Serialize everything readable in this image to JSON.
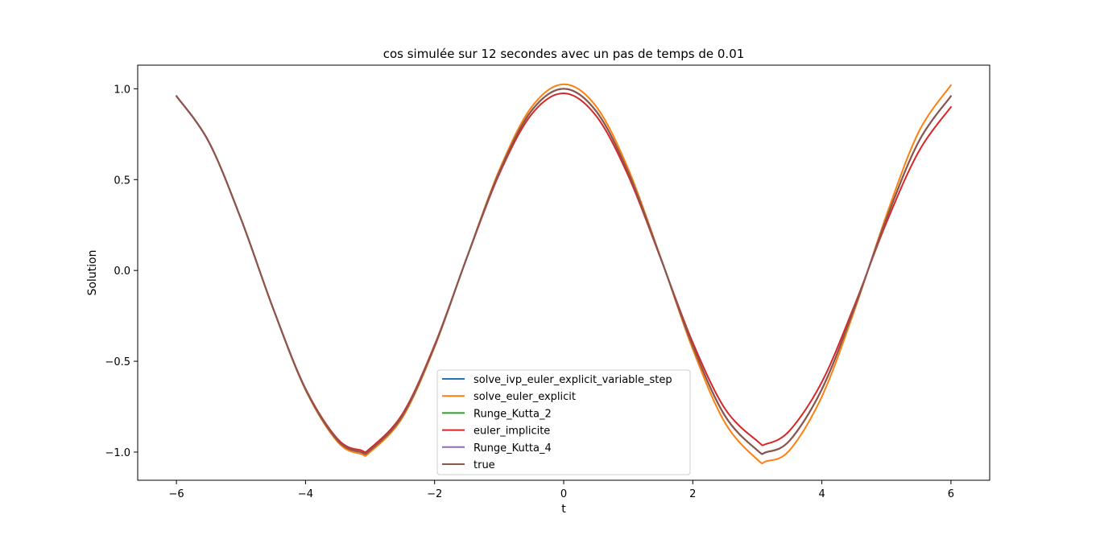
{
  "chart_data": {
    "type": "line",
    "title": "cos simulée sur 12 secondes avec un pas de temps de 0.01",
    "xlabel": "t",
    "ylabel": "Solution",
    "xlim": [
      -6.6,
      6.6
    ],
    "ylim": [
      -1.155,
      1.13
    ],
    "grid": false,
    "legend_position": "lower center",
    "x_ticks": [
      -6,
      -4,
      -2,
      0,
      2,
      4,
      6
    ],
    "x_tick_labels": [
      "−6",
      "−4",
      "−2",
      "0",
      "2",
      "4",
      "6"
    ],
    "y_ticks": [
      -1.0,
      -0.5,
      0.0,
      0.5,
      1.0
    ],
    "y_tick_labels": [
      "−1.0",
      "−0.5",
      "0.0",
      "0.5",
      "1.0"
    ],
    "x": [
      -6.0,
      -5.5,
      -5.0,
      -4.5,
      -4.0,
      -3.5,
      -3.14,
      -3.0,
      -2.5,
      -2.0,
      -1.5,
      -1.0,
      -0.5,
      0.0,
      0.5,
      1.0,
      1.5,
      2.0,
      2.5,
      3.0,
      3.14,
      3.5,
      4.0,
      4.5,
      5.0,
      5.5,
      6.0
    ],
    "series": [
      {
        "name": "solve_ivp_euler_explicit_variable_step",
        "color": "#1f77b4",
        "values": [
          0.96,
          0.709,
          0.284,
          -0.211,
          -0.654,
          -0.937,
          -1.0,
          -0.99,
          -0.801,
          -0.416,
          0.071,
          0.54,
          0.878,
          1.0,
          0.878,
          0.54,
          0.071,
          -0.416,
          -0.801,
          -0.99,
          -1.0,
          -0.937,
          -0.654,
          -0.211,
          0.284,
          0.709,
          0.96
        ]
      },
      {
        "name": "solve_euler_explicit",
        "color": "#ff7f0e",
        "values": [
          0.96,
          0.71,
          0.285,
          -0.212,
          -0.658,
          -0.945,
          -1.01,
          -1.0,
          -0.811,
          -0.422,
          0.072,
          0.551,
          0.898,
          1.025,
          0.904,
          0.559,
          0.074,
          -0.434,
          -0.839,
          -1.041,
          -1.05,
          -0.99,
          -0.694,
          -0.225,
          0.304,
          0.762,
          1.02
        ]
      },
      {
        "name": "Runge_Kutta_2",
        "color": "#2ca02c",
        "values": [
          0.96,
          0.709,
          0.284,
          -0.211,
          -0.654,
          -0.937,
          -1.0,
          -0.99,
          -0.801,
          -0.416,
          0.071,
          0.54,
          0.878,
          1.0,
          0.878,
          0.54,
          0.071,
          -0.416,
          -0.801,
          -0.99,
          -1.0,
          -0.937,
          -0.654,
          -0.211,
          0.284,
          0.709,
          0.96
        ]
      },
      {
        "name": "euler_implicite",
        "color": "#d62728",
        "values": [
          0.96,
          0.708,
          0.283,
          -0.21,
          -0.65,
          -0.929,
          -0.99,
          -0.98,
          -0.791,
          -0.41,
          0.07,
          0.529,
          0.858,
          0.975,
          0.852,
          0.522,
          0.068,
          -0.397,
          -0.762,
          -0.939,
          -0.955,
          -0.882,
          -0.614,
          -0.197,
          0.263,
          0.654,
          0.9
        ]
      },
      {
        "name": "Runge_Kutta_4",
        "color": "#9467bd",
        "values": [
          0.96,
          0.709,
          0.284,
          -0.211,
          -0.654,
          -0.937,
          -1.0,
          -0.99,
          -0.801,
          -0.416,
          0.071,
          0.54,
          0.878,
          1.0,
          0.878,
          0.54,
          0.071,
          -0.416,
          -0.801,
          -0.99,
          -1.0,
          -0.937,
          -0.654,
          -0.211,
          0.284,
          0.709,
          0.96
        ]
      },
      {
        "name": "true",
        "color": "#8c564b",
        "values": [
          0.96,
          0.709,
          0.284,
          -0.211,
          -0.654,
          -0.937,
          -1.0,
          -0.99,
          -0.801,
          -0.416,
          0.071,
          0.54,
          0.878,
          1.0,
          0.878,
          0.54,
          0.071,
          -0.416,
          -0.801,
          -0.99,
          -1.0,
          -0.937,
          -0.654,
          -0.211,
          0.284,
          0.709,
          0.96
        ]
      }
    ]
  }
}
